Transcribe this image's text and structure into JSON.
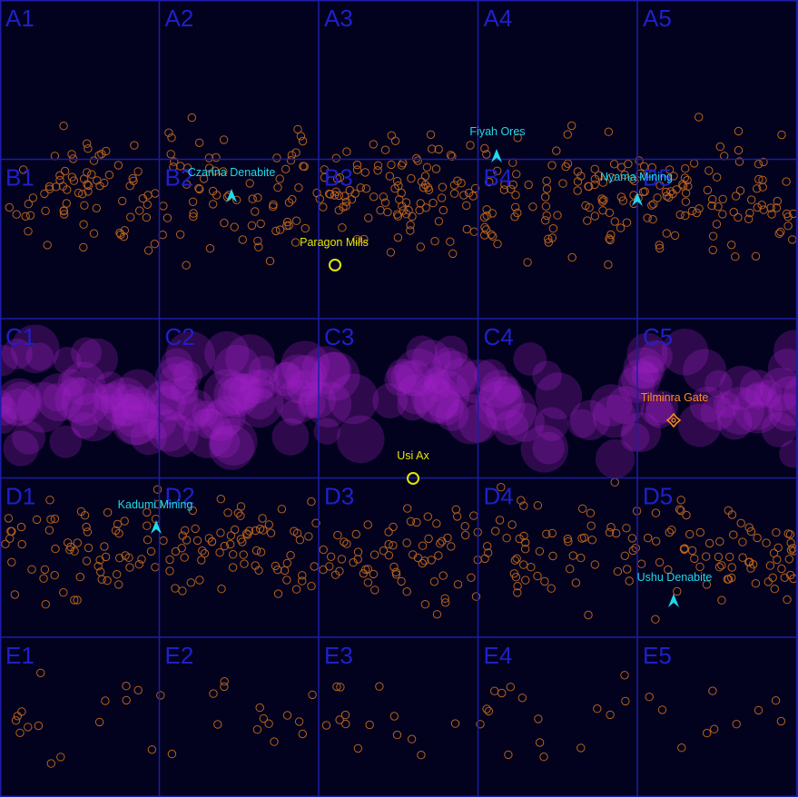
{
  "colors": {
    "background": "#02021e",
    "grid": "#1c1ca8",
    "grid_label": "#2020c8",
    "asteroid": "#b8621c",
    "nebula": "#a020c8",
    "station_trade": "#e6e600",
    "station_mining": "#22d8e8",
    "gate": "#ff8c1a"
  },
  "grid": {
    "rows": [
      "A",
      "B",
      "C",
      "D",
      "E"
    ],
    "cols": [
      "1",
      "2",
      "3",
      "4",
      "5"
    ],
    "labels": [
      "A1",
      "A2",
      "A3",
      "A4",
      "A5",
      "B1",
      "B2",
      "B3",
      "B4",
      "B5",
      "C1",
      "C2",
      "C3",
      "C4",
      "C5",
      "D1",
      "D2",
      "D3",
      "D4",
      "D5",
      "E1",
      "E2",
      "E3",
      "E4",
      "E5"
    ]
  },
  "locations": [
    {
      "name": "Fiyah Ores",
      "kind": "mining",
      "icon": "arrow-icon"
    },
    {
      "name": "Czarina Denabite",
      "kind": "mining",
      "icon": "arrow-icon"
    },
    {
      "name": "Nyama Mining",
      "kind": "mining",
      "icon": "arrow-icon"
    },
    {
      "name": "Paragon Mills",
      "kind": "trade",
      "icon": "ring-icon"
    },
    {
      "name": "Tilminra Gate",
      "kind": "gate",
      "icon": "gate-icon"
    },
    {
      "name": "Usi Ax",
      "kind": "trade",
      "icon": "ring-icon"
    },
    {
      "name": "Kadumi Mining",
      "kind": "mining",
      "icon": "arrow-icon"
    },
    {
      "name": "Ushu Denabite",
      "kind": "mining",
      "icon": "arrow-icon"
    }
  ]
}
